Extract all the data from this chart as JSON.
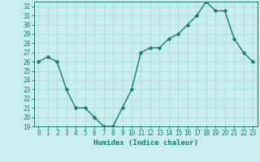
{
  "x": [
    0,
    1,
    2,
    3,
    4,
    5,
    6,
    7,
    8,
    9,
    10,
    11,
    12,
    13,
    14,
    15,
    16,
    17,
    18,
    19,
    20,
    21,
    22,
    23
  ],
  "y": [
    26,
    26.5,
    26,
    23,
    21,
    21,
    20,
    19,
    19,
    21,
    23,
    27,
    27.5,
    27.5,
    28.5,
    29,
    30,
    31,
    32.5,
    31.5,
    31.5,
    28.5,
    27,
    26
  ],
  "line_color": "#1a7a6e",
  "marker_color": "#1a7a6e",
  "bg_color": "#c8eeee",
  "grid_color": "#a8d8d8",
  "xlabel": "Humidex (Indice chaleur)",
  "ylim": [
    19,
    32.5
  ],
  "xlim": [
    -0.5,
    23.5
  ],
  "yticks": [
    19,
    20,
    21,
    22,
    23,
    24,
    25,
    26,
    27,
    28,
    29,
    30,
    31,
    32
  ],
  "xticks": [
    0,
    1,
    2,
    3,
    4,
    5,
    6,
    7,
    8,
    9,
    10,
    11,
    12,
    13,
    14,
    15,
    16,
    17,
    18,
    19,
    20,
    21,
    22,
    23
  ],
  "label_fontsize": 6.5,
  "tick_fontsize": 5.5,
  "line_width": 1.0,
  "marker_size": 2.5
}
